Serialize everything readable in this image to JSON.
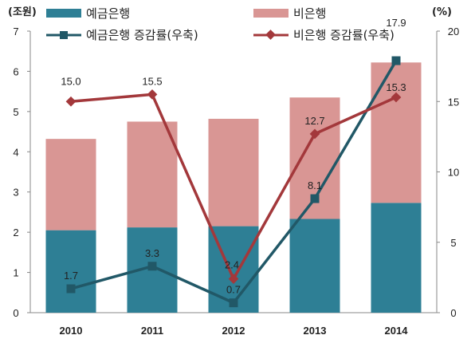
{
  "chart_data": {
    "type": "bar",
    "stacked": true,
    "categories": [
      "2010",
      "2011",
      "2012",
      "2013",
      "2014"
    ],
    "left_axis": {
      "unit_label": "(조원)",
      "ylim": [
        0,
        7
      ],
      "ticks": [
        "0",
        "1",
        "2",
        "3",
        "4",
        "5",
        "6",
        "7"
      ]
    },
    "right_axis": {
      "unit_label": "(%)",
      "ylim": [
        0,
        20
      ],
      "ticks": [
        "0",
        "5",
        "10",
        "15",
        "20"
      ]
    },
    "series": [
      {
        "name": "예금은행",
        "kind": "bar",
        "axis": "left",
        "color": "#2e7f95",
        "values": [
          2.05,
          2.12,
          2.15,
          2.33,
          2.73
        ]
      },
      {
        "name": "비은행",
        "kind": "bar",
        "axis": "left",
        "color": "#d99694",
        "values": [
          2.27,
          2.63,
          2.67,
          3.02,
          3.49
        ]
      },
      {
        "name": "예금은행 증감률(우축)",
        "kind": "line",
        "axis": "right",
        "color": "#215867",
        "marker": "square",
        "values": [
          1.7,
          3.3,
          0.7,
          8.1,
          17.9
        ],
        "labels": [
          "1.7",
          "3.3",
          "0.7",
          "8.1",
          "17.9"
        ]
      },
      {
        "name": "비은행 증감률(우축)",
        "kind": "line",
        "axis": "right",
        "color": "#a3383b",
        "marker": "diamond",
        "values": [
          15.0,
          15.5,
          2.4,
          12.7,
          15.3
        ],
        "labels": [
          "15.0",
          "15.5",
          "2.4",
          "12.7",
          "15.3"
        ]
      }
    ],
    "legend_position": "top",
    "grid": false
  }
}
